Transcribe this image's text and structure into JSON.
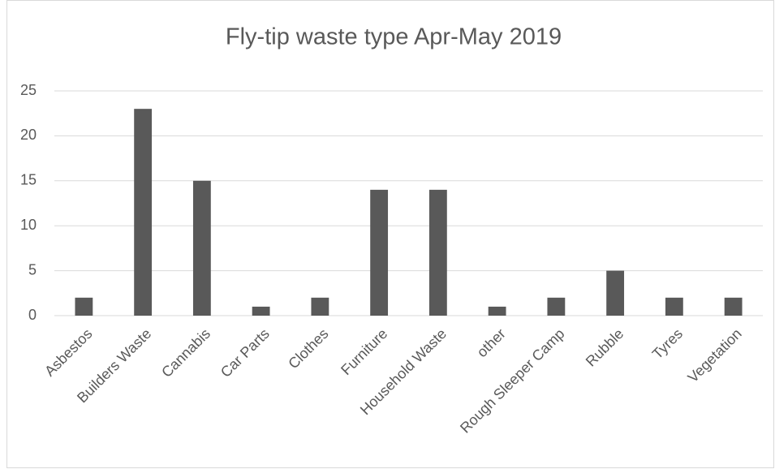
{
  "chart_data": {
    "type": "bar",
    "title": "Fly-tip waste type Apr-May 2019",
    "categories": [
      "Asbestos",
      "Builders Waste",
      "Cannabis",
      "Car Parts",
      "Clothes",
      "Furniture",
      "Household Waste",
      "other",
      "Rough Sleeper Camp",
      "Rubble",
      "Tyres",
      "Vegetation"
    ],
    "values": [
      2,
      23,
      15,
      1,
      2,
      14,
      14,
      1,
      2,
      5,
      2,
      2
    ],
    "color": "#595959",
    "ylim": [
      0,
      25
    ],
    "yticks": [
      0,
      5,
      10,
      15,
      20,
      25
    ],
    "grid": true
  }
}
